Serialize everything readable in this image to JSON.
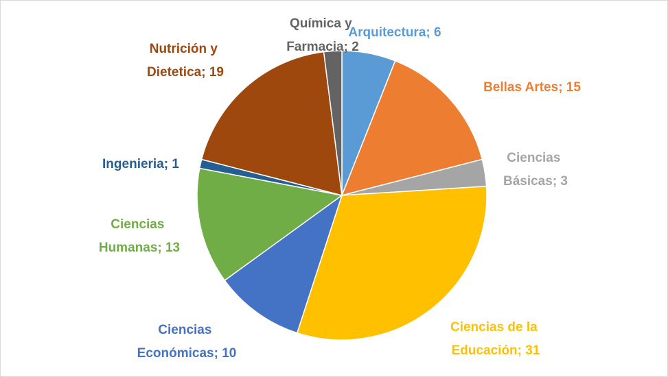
{
  "chart_data": {
    "type": "pie",
    "values": [
      6,
      15,
      3,
      31,
      10,
      13,
      1,
      19,
      2
    ],
    "value_labels": [
      "Arquitectura; 6",
      "Bellas Artes; 15",
      "Ciencias Básicas; 3",
      "Ciencias de la Educación; 31",
      "Ciencias Económicas; 10",
      "Ciencias Humanas; 13",
      "Ingenieria; 1",
      "Nutrición y Dietetica; 19",
      "Química y Farmacia; 2"
    ],
    "colors": [
      "#5b9bd5",
      "#ed7d31",
      "#a5a5a5",
      "#ffc000",
      "#4472c4",
      "#70ad47",
      "#255e91",
      "#9e480e",
      "#636363"
    ]
  }
}
